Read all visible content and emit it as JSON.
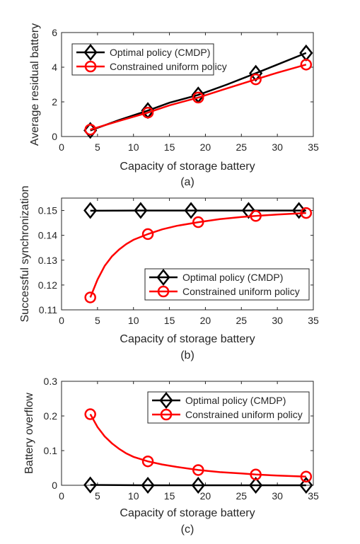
{
  "chart_data": [
    {
      "type": "line",
      "caption": "(a)",
      "xlabel": "Capacity of storage battery",
      "ylabel": "Average residual battery",
      "xlim": [
        0,
        35
      ],
      "ylim": [
        0,
        6
      ],
      "xticks": [
        "0",
        "5",
        "10",
        "15",
        "20",
        "25",
        "30",
        "35"
      ],
      "yticks": [
        "0",
        "2",
        "4",
        "6"
      ],
      "legend_position": "top-left",
      "grid": false,
      "series": [
        {
          "name": "Optimal policy (CMDP)",
          "color": "#000000",
          "marker": "diamond",
          "x": [
            4,
            12,
            19,
            27,
            34
          ],
          "y": [
            0.35,
            1.5,
            2.4,
            3.65,
            4.82
          ],
          "curve_x": [
            4,
            8,
            12,
            15,
            19,
            23,
            27,
            30,
            34
          ],
          "curve_y": [
            0.35,
            0.95,
            1.5,
            1.95,
            2.4,
            3.0,
            3.65,
            4.15,
            4.82
          ]
        },
        {
          "name": "Constrained uniform policy",
          "color": "#ff0000",
          "marker": "circle",
          "x": [
            4,
            12,
            19,
            27,
            34
          ],
          "y": [
            0.4,
            1.38,
            2.25,
            3.3,
            4.15
          ],
          "curve_x": [
            4,
            8,
            12,
            15,
            19,
            23,
            27,
            30,
            34
          ],
          "curve_y": [
            0.4,
            0.9,
            1.38,
            1.8,
            2.25,
            2.78,
            3.3,
            3.68,
            4.15
          ]
        }
      ]
    },
    {
      "type": "line",
      "caption": "(b)",
      "xlabel": "Capacity of storage battery",
      "ylabel": "Successful synchronization",
      "xlim": [
        0,
        35
      ],
      "ylim": [
        0.11,
        0.155
      ],
      "xticks": [
        "0",
        "5",
        "10",
        "15",
        "20",
        "25",
        "30",
        "35"
      ],
      "yticks": [
        "0.11",
        "0.12",
        "0.13",
        "0.14",
        "0.15"
      ],
      "legend_position": "bottom-right",
      "grid": false,
      "series": [
        {
          "name": "Optimal policy (CMDP)",
          "color": "#000000",
          "marker": "diamond",
          "x": [
            4,
            11,
            18,
            26,
            33
          ],
          "y": [
            0.15,
            0.15,
            0.15,
            0.15,
            0.15
          ],
          "curve_x": [
            4,
            11,
            18,
            26,
            33,
            34
          ],
          "curve_y": [
            0.1499,
            0.15,
            0.15,
            0.15,
            0.15,
            0.15
          ]
        },
        {
          "name": "Constrained uniform policy",
          "color": "#ff0000",
          "marker": "circle",
          "x": [
            4,
            12,
            19,
            27,
            34
          ],
          "y": [
            0.115,
            0.1405,
            0.1453,
            0.1478,
            0.149
          ],
          "curve_x": [
            4,
            5,
            6,
            7,
            8,
            9,
            10,
            12,
            14,
            16,
            19,
            22,
            25,
            27,
            30,
            34
          ],
          "curve_y": [
            0.115,
            0.1222,
            0.1277,
            0.1315,
            0.1343,
            0.1365,
            0.1382,
            0.1405,
            0.1424,
            0.1438,
            0.1453,
            0.1465,
            0.1474,
            0.1478,
            0.1484,
            0.149
          ]
        }
      ]
    },
    {
      "type": "line",
      "caption": "(c)",
      "xlabel": "Capacity of storage battery",
      "ylabel": "Battery overflow",
      "xlim": [
        0,
        35
      ],
      "ylim": [
        0,
        0.3
      ],
      "xticks": [
        "0",
        "5",
        "10",
        "15",
        "20",
        "25",
        "30",
        "35"
      ],
      "yticks": [
        "0",
        "0.1",
        "0.2",
        "0.3"
      ],
      "legend_position": "top-right",
      "grid": false,
      "series": [
        {
          "name": "Optimal policy (CMDP)",
          "color": "#000000",
          "marker": "diamond",
          "x": [
            4,
            12,
            19,
            27,
            34
          ],
          "y": [
            0.001,
            0.0,
            0.0,
            0.0,
            0.0
          ],
          "curve_x": [
            4,
            12,
            19,
            27,
            34
          ],
          "curve_y": [
            0.001,
            0.0,
            0.0,
            0.0,
            0.0
          ]
        },
        {
          "name": "Constrained uniform policy",
          "color": "#ff0000",
          "marker": "circle",
          "x": [
            4,
            12,
            19,
            27,
            34
          ],
          "y": [
            0.205,
            0.069,
            0.044,
            0.031,
            0.025
          ],
          "curve_x": [
            4,
            5,
            6,
            7,
            8,
            9,
            10,
            12,
            14,
            16,
            19,
            22,
            25,
            27,
            30,
            34
          ],
          "curve_y": [
            0.205,
            0.168,
            0.141,
            0.121,
            0.105,
            0.092,
            0.082,
            0.069,
            0.06,
            0.053,
            0.044,
            0.038,
            0.034,
            0.031,
            0.028,
            0.025
          ]
        }
      ]
    }
  ]
}
